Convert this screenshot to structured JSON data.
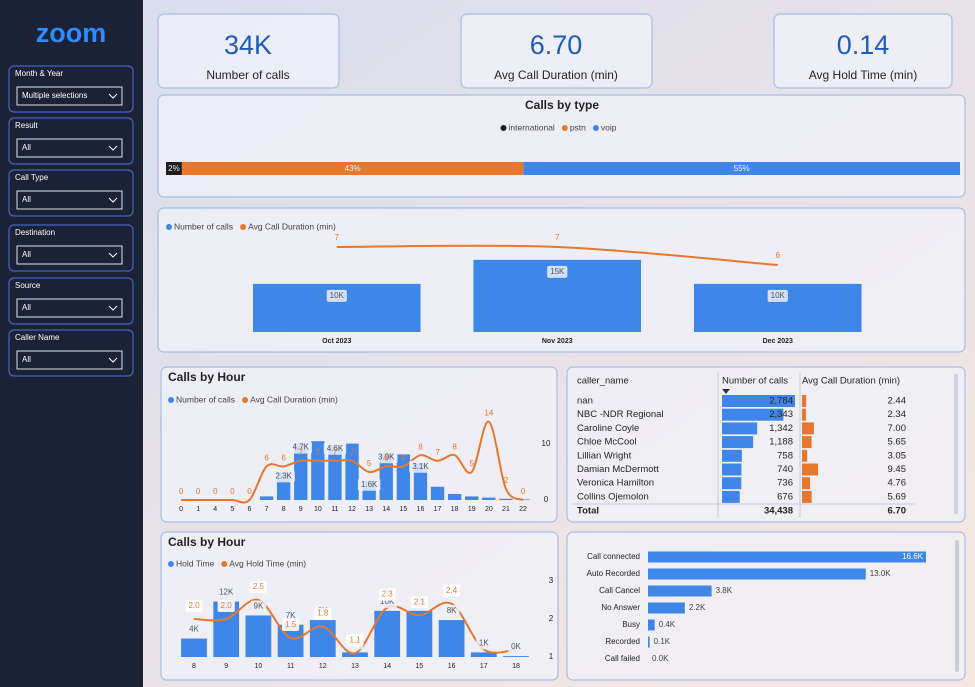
{
  "sidebar": {
    "logo": "zoom",
    "filters": [
      {
        "label": "Month & Year",
        "value": "Multiple selections"
      },
      {
        "label": "Result",
        "value": "All"
      },
      {
        "label": "Call Type",
        "value": "All"
      },
      {
        "label": "Destination",
        "value": "All"
      },
      {
        "label": "Source",
        "value": "All"
      },
      {
        "label": "Caller Name",
        "value": "All"
      }
    ]
  },
  "cards": [
    {
      "value": "34K",
      "label": "Number of calls"
    },
    {
      "value": "6.70",
      "label": "Avg Call Duration (min)"
    },
    {
      "value": "0.14",
      "label": "Avg Hold Time (min)"
    }
  ],
  "chart_data": [
    {
      "type": "stacked-bar",
      "title": "Calls by type",
      "xlim": [
        0,
        100
      ],
      "series": [
        {
          "name": "international",
          "color": "#1e1e1e",
          "values": [
            2
          ],
          "value_labels": [
            "2%"
          ]
        },
        {
          "name": "pstn",
          "color": "#e8772e",
          "values": [
            43
          ],
          "value_labels": [
            "43%"
          ]
        },
        {
          "name": "voip",
          "color": "#3f86e9",
          "values": [
            55
          ],
          "value_labels": [
            "55%"
          ]
        }
      ]
    },
    {
      "type": "combo",
      "categories": [
        "Oct 2023",
        "Nov 2023",
        "Dec 2023"
      ],
      "ylim": [
        0,
        16000
      ],
      "y2lim": [
        0,
        8
      ],
      "series": [
        {
          "name": "Number of calls",
          "color": "#3f86e9",
          "values": [
            10000,
            15000,
            10000
          ],
          "value_labels": [
            "10K",
            "15K",
            "10K"
          ]
        },
        {
          "name": "Avg Call Duration (min)",
          "color": "#e8772e",
          "axis": "y2",
          "values": [
            7,
            7,
            6
          ]
        }
      ]
    },
    {
      "type": "combo",
      "title": "Calls by Hour",
      "categories": [
        "0",
        "1",
        "4",
        "5",
        "6",
        "7",
        "8",
        "9",
        "10",
        "11",
        "12",
        "13",
        "14",
        "15",
        "16",
        "17",
        "18",
        "19",
        "20",
        "21",
        "22"
      ],
      "ylim": [
        0,
        7000
      ],
      "y2lim": [
        0,
        15
      ],
      "y2ticks": [
        0,
        10
      ],
      "series": [
        {
          "name": "Number of calls",
          "color": "#3f86e9",
          "values": [
            0,
            0,
            0,
            0,
            0,
            300,
            2300,
            4700,
            4900,
            4600,
            4700,
            1600,
            3900,
            3800,
            3100,
            1100,
            500,
            300,
            200,
            100,
            50
          ],
          "value_labels": [
            null,
            null,
            null,
            null,
            null,
            null,
            "2.3K",
            "4.7K",
            null,
            "4.6K",
            null,
            "1.6K",
            "3.9K",
            null,
            "3.1K",
            null,
            null,
            null,
            null,
            null,
            null
          ]
        },
        {
          "name": "Avg Call Duration (min)",
          "color": "#e8772e",
          "axis": "y2",
          "values": [
            0,
            0,
            0,
            0,
            0,
            6,
            6,
            7,
            7,
            7,
            7,
            5,
            6,
            6,
            8,
            7,
            8,
            5,
            14,
            2,
            0
          ]
        }
      ]
    },
    {
      "type": "table",
      "category_header": "caller_name",
      "categories": [
        "nan",
        "NBC -NDR Regional",
        "Caroline Coyle",
        "Chloe McCool",
        "Lillian Wright",
        "Damian McDermott",
        "Veronica Hamilton",
        "Collins Ojemolon"
      ],
      "xlim": [
        0,
        2800
      ],
      "x2lim": [
        0,
        10
      ],
      "series": [
        {
          "name": "Number of calls",
          "color": "#3f86e9",
          "values": [
            2784,
            2343,
            1342,
            1188,
            758,
            740,
            736,
            676
          ],
          "value_labels": [
            "2,784",
            "2,343",
            "1,342",
            "1,188",
            "758",
            "740",
            "736",
            "676"
          ]
        },
        {
          "name": "Avg Call Duration (min)",
          "color": "#e8772e",
          "values": [
            2.44,
            2.34,
            7,
            5.65,
            3.05,
            9.45,
            4.76,
            5.69
          ],
          "value_labels": [
            "2.44",
            "2.34",
            "7.00",
            "5.65",
            "3.05",
            "9.45",
            "4.76",
            "5.69"
          ]
        }
      ],
      "total": {
        "label": "Total",
        "value_labels": [
          "34,438",
          "6.70"
        ]
      }
    },
    {
      "type": "combo",
      "title": "Calls by Hour",
      "categories": [
        "8",
        "9",
        "10",
        "11",
        "12",
        "13",
        "14",
        "15",
        "16",
        "17",
        "18"
      ],
      "ylim": [
        0,
        13000
      ],
      "y2lim": [
        1,
        3
      ],
      "y2ticks": [
        1,
        2,
        3
      ],
      "series": [
        {
          "name": "Hold Time",
          "color": "#3f86e9",
          "values": [
            4000,
            12000,
            9000,
            7000,
            8000,
            1000,
            10000,
            10000,
            8000,
            1000,
            200
          ],
          "value_labels": [
            "4K",
            "12K",
            "9K",
            "7K",
            "8K",
            "1K",
            "10K",
            "10K",
            "8K",
            "1K",
            "0K"
          ]
        },
        {
          "name": "Avg Hold Time (min)",
          "color": "#e8772e",
          "axis": "y2",
          "values": [
            2,
            2,
            2.5,
            1.5,
            1.8,
            1.1,
            2.3,
            2.1,
            2.4,
            1.2,
            1.2
          ],
          "value_labels": [
            "2.0",
            "2.0",
            "2.5",
            "1.5",
            "1.8",
            "1.1",
            "2.3",
            "2.1",
            "2.4",
            null,
            null
          ]
        }
      ]
    },
    {
      "type": "hbar",
      "categories": [
        "Call connected",
        "Auto Recorded",
        "Call Cancel",
        "No Answer",
        "Busy",
        "Recorded",
        "Call failed"
      ],
      "xlim": [
        0,
        17000
      ],
      "color": "#3f86e9",
      "values": [
        16600,
        13000,
        3800,
        2200,
        400,
        100,
        0
      ],
      "value_labels": [
        "16.6K",
        "13.0K",
        "3.8K",
        "2.2K",
        "0.4K",
        "0.1K",
        "0.0K"
      ]
    }
  ]
}
